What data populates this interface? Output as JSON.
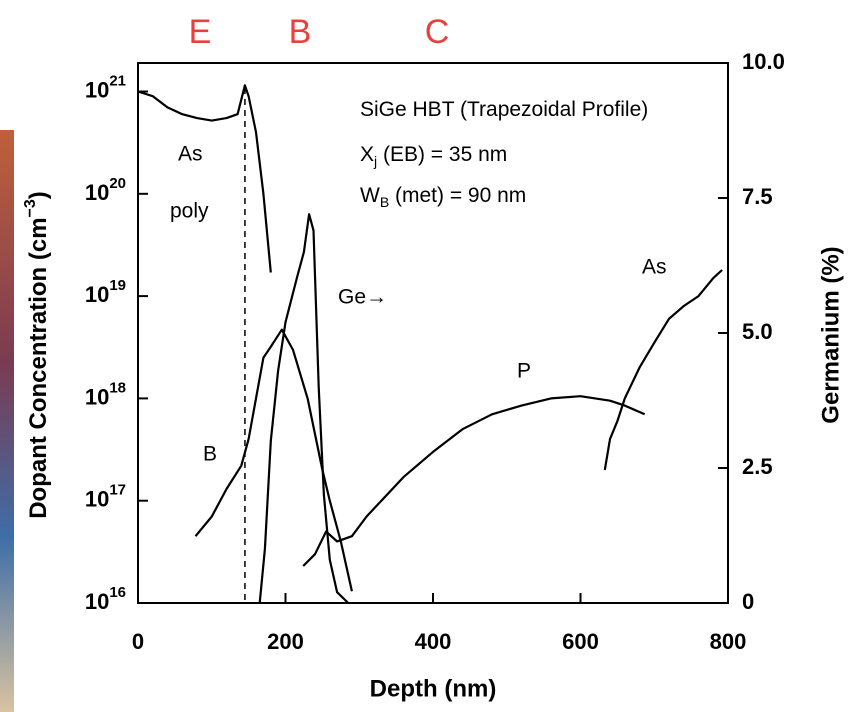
{
  "chart_data": {
    "type": "line",
    "regions": [
      "E",
      "B",
      "C"
    ],
    "annotation_lines": [
      [
        "SiGe HBT (Trapezoidal Profile)"
      ],
      [
        "X",
        "j",
        " (EB) = 35 nm"
      ],
      [
        "W",
        "B",
        " (met) = 90 nm"
      ]
    ],
    "note": "poly",
    "xlabel": "Depth (nm)",
    "ylabel": {
      "text": "Dopant Concentration (cm",
      "sup": "−3",
      "end": ")"
    },
    "y2label": "Germanium (%)",
    "xlim": [
      0,
      800
    ],
    "xticks": [
      0,
      200,
      400,
      600,
      800
    ],
    "ylog": true,
    "ylim": [
      1e+16,
      1.9e+21
    ],
    "yticks": [
      {
        "value": 1e+16,
        "label": "10",
        "exponent": "16"
      },
      {
        "value": 1e+17,
        "label": "10",
        "exponent": "17"
      },
      {
        "value": 1e+18,
        "label": "10",
        "exponent": "18"
      },
      {
        "value": 1e+19,
        "label": "10",
        "exponent": "19"
      },
      {
        "value": 1e+20,
        "label": "10",
        "exponent": "20"
      },
      {
        "value": 1e+21,
        "label": "10",
        "exponent": "21"
      }
    ],
    "y2lim": [
      0,
      10
    ],
    "y2ticks": [
      0,
      2.5,
      {
        "value": 5,
        "label": "5.0"
      },
      7.5,
      {
        "value": 10,
        "label": "10.0"
      }
    ],
    "junction_depth": 145,
    "series": [
      {
        "name": "As",
        "color": "#000000",
        "x": [
          0,
          20,
          40,
          60,
          80,
          100,
          120,
          135,
          145,
          150,
          160,
          170,
          180
        ],
        "values": [
          1e+21,
          9e+20,
          7e+20,
          6e+20,
          5.5e+20,
          5.2e+20,
          5.5e+20,
          6e+20,
          1.15e+21,
          9e+20,
          4e+20,
          1e+20,
          1.7e+19
        ]
      },
      {
        "name": "B",
        "color": "#000000",
        "x": [
          78,
          100,
          120,
          140,
          150,
          160,
          170,
          180,
          195,
          210,
          230,
          250,
          260,
          275,
          290
        ],
        "values": [
          4.5e+16,
          7e+16,
          1.3e+17,
          2.2e+17,
          4e+17,
          1e+18,
          2.5e+18,
          3.2e+18,
          4.7e+18,
          3e+18,
          1e+18,
          2e+17,
          1e+17,
          4e+16,
          1.3e+16
        ]
      },
      {
        "name": "Ge→",
        "color": "#000000",
        "axis": "y2",
        "x": [
          165,
          172,
          180,
          190,
          200,
          215,
          225,
          232,
          238,
          245,
          252,
          260,
          270,
          285
        ],
        "values": [
          0,
          1,
          3,
          4.3,
          5.2,
          6,
          6.5,
          7.2,
          6.9,
          4,
          2,
          0.8,
          0.2,
          0
        ]
      },
      {
        "name": "P",
        "color": "#000000",
        "x": [
          224,
          240,
          255,
          270,
          290,
          310,
          330,
          360,
          400,
          440,
          480,
          520,
          560,
          600,
          640,
          660,
          687
        ],
        "values": [
          2.3e+16,
          3e+16,
          5e+16,
          4e+16,
          4.5e+16,
          7e+16,
          1e+17,
          1.7e+17,
          3e+17,
          5e+17,
          7e+17,
          8.5e+17,
          1e+18,
          1.05e+18,
          9.5e+17,
          8.5e+17,
          7e+17
        ]
      },
      {
        "name": "As",
        "color": "#000000",
        "x": [
          633,
          640,
          650,
          660,
          680,
          700,
          720,
          740,
          760,
          780,
          792
        ],
        "values": [
          2e+17,
          4e+17,
          6e+17,
          1e+18,
          2e+18,
          3.5e+18,
          6e+18,
          8e+18,
          1e+19,
          1.5e+19,
          1.8e+19
        ]
      }
    ]
  }
}
